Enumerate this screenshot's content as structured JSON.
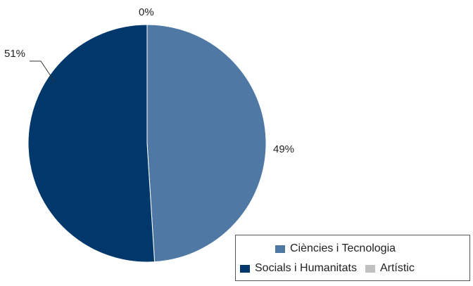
{
  "chart_data": {
    "type": "pie",
    "slices": [
      {
        "label": "Ciències i Tecnologia",
        "value": 49,
        "display": "49%",
        "color": "#4f79a4"
      },
      {
        "label": "Socials i Humanitats",
        "value": 51,
        "display": "51%",
        "color": "#00386b"
      },
      {
        "label": "Artístic",
        "value": 0,
        "display": "0%",
        "color": "#c0c0c0"
      }
    ],
    "legend_position": "bottom-right"
  }
}
